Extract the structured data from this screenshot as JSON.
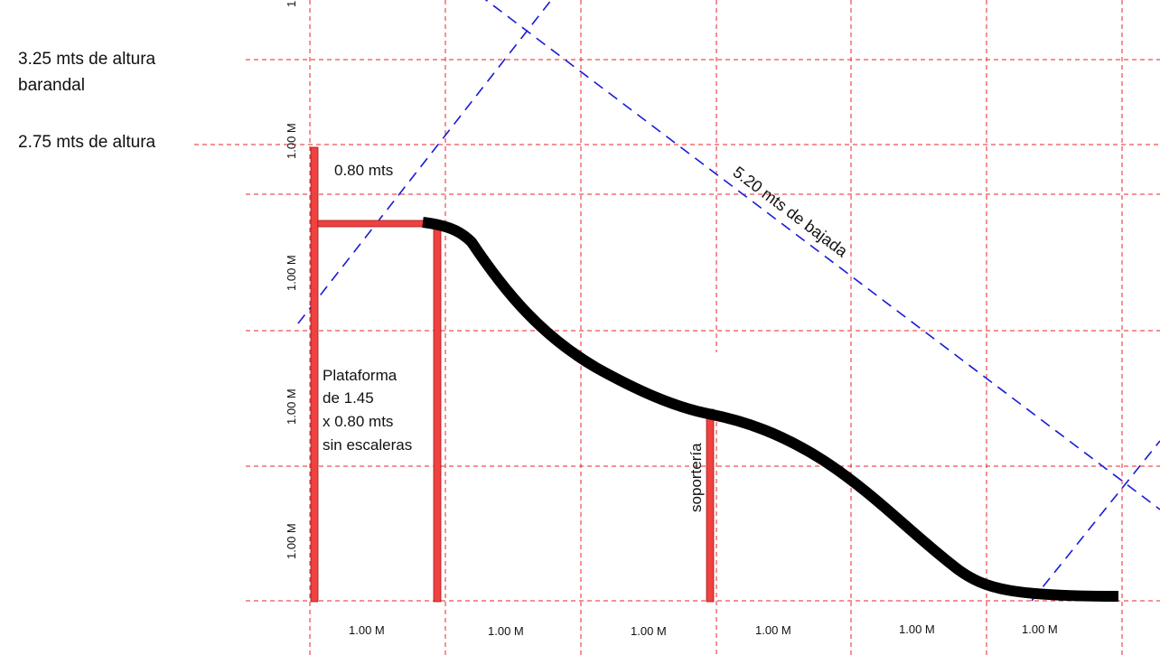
{
  "labels": {
    "height_railing_line1": "3.25 mts de altura",
    "height_railing_line2": "barandal",
    "height_platform": "2.75 mts de altura",
    "platform_width": "0.80 mts",
    "platform_desc": [
      "Plataforma",
      "de 1.45",
      "x 0.80 mts",
      "sin escaleras"
    ],
    "support": "soportería",
    "slide_length": "5.20 mts de bajada"
  },
  "axis": {
    "x_ticks": [
      "1.00 M",
      "1.00 M",
      "1.00 M",
      "1.00 M",
      "1.00 M",
      "1.00 M"
    ],
    "y_ticks": [
      "1.00 M",
      "1.00 M",
      "1.00 M",
      "1.00 M"
    ],
    "y_top_partial": "1"
  },
  "colors": {
    "grid": "#e8242a",
    "guides": "#1a1ad6",
    "posts": "#f04141",
    "slide": "#000000"
  }
}
